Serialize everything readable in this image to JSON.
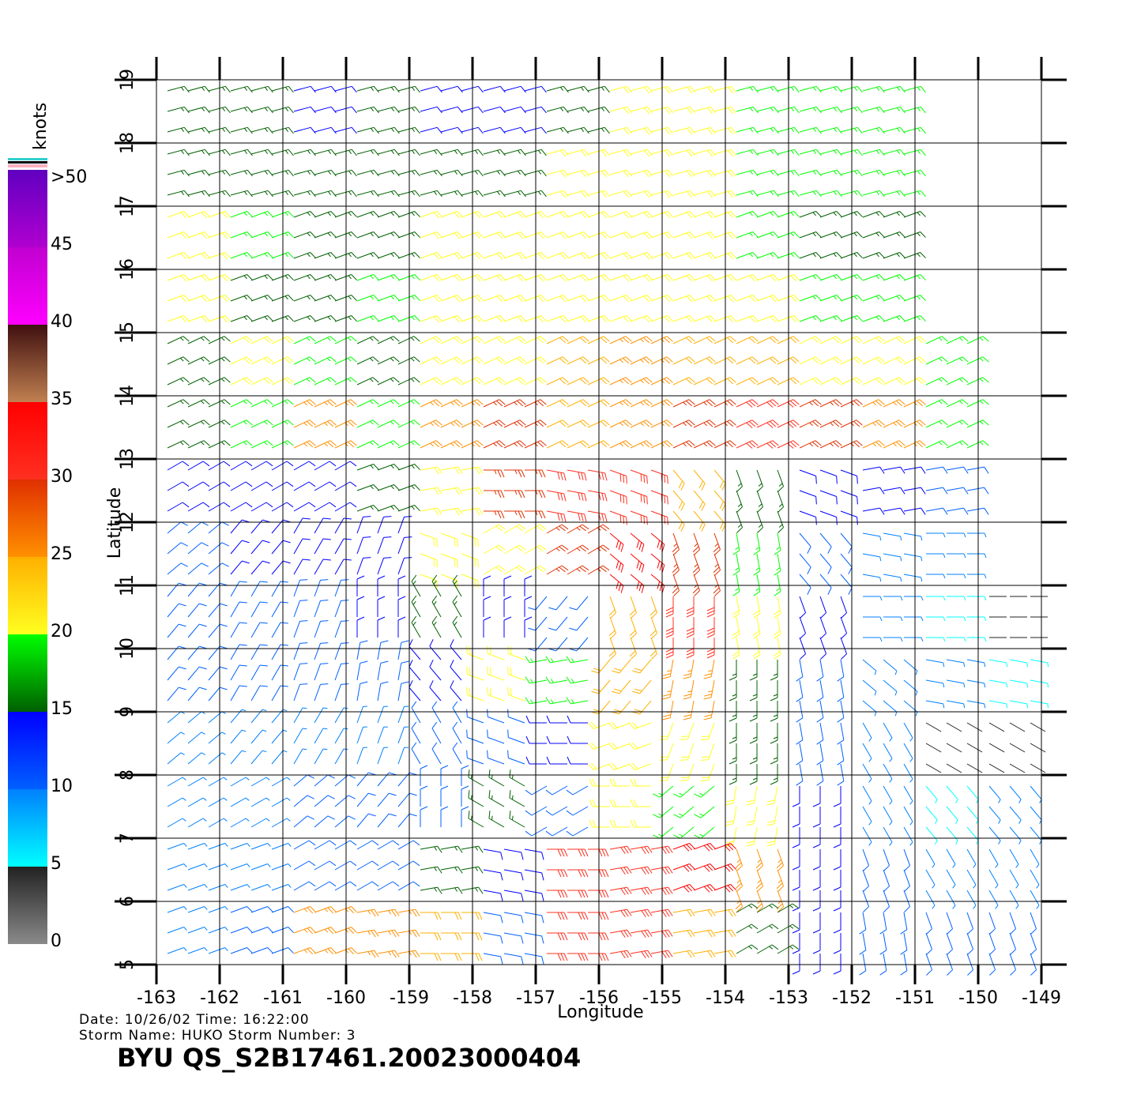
{
  "chart_data": {
    "type": "wind-barbs",
    "xlabel": "Longitude",
    "ylabel": "Latitude",
    "xlim": [
      -163,
      -149
    ],
    "ylim": [
      5,
      19
    ],
    "xticks": [
      -163,
      -162,
      -161,
      -160,
      -159,
      -158,
      -157,
      -156,
      -155,
      -154,
      -153,
      -152,
      -151,
      -150,
      -149
    ],
    "yticks": [
      5,
      6,
      7,
      8,
      9,
      10,
      11,
      12,
      13,
      14,
      15,
      16,
      17,
      18,
      19
    ],
    "grid": true,
    "info": [
      "Date: 10/26/02   Time: 16:22:00",
      "Storm Name: HUKO   Storm Number: 3"
    ],
    "footer": "BYU QS_S2B17461.20023000404",
    "legend": {
      "title": "knots",
      "ticks": [
        0,
        5,
        10,
        15,
        20,
        25,
        30,
        35,
        40,
        45,
        {
          "value": 50,
          "label": ">50"
        }
      ],
      "colors": [
        [
          "#8a8a8a",
          "#222222"
        ],
        [
          "#00ffff",
          "#0080ff"
        ],
        [
          "#0060ff",
          "#0000ff"
        ],
        [
          "#006000",
          "#00ff00"
        ],
        [
          "#ffff20",
          "#ffb000"
        ],
        [
          "#ff9000",
          "#e03000"
        ],
        [
          "#ff3020",
          "#ff0000"
        ],
        [
          "#c08050",
          "#401010"
        ],
        [
          "#ff00ff",
          "#c000d0"
        ],
        [
          "#b000d0",
          "#6000c0"
        ]
      ]
    },
    "wind": {
      "lons": [
        -162.5,
        -161.5,
        -160.5,
        -159.5,
        -158.5,
        -157.5,
        -156.5,
        -155.5,
        -154.5,
        -153.5,
        -152.5,
        -151.5,
        -150.5,
        -149.5
      ],
      "lats": [
        18.5,
        17.5,
        16.5,
        15.5,
        14.5,
        13.5,
        12.5,
        11.5,
        10.5,
        9.5,
        8.5,
        7.5,
        6.5,
        5.5
      ],
      "speed": [
        [
          17,
          17,
          14,
          16,
          14,
          13,
          17,
          21,
          21,
          18,
          18,
          18,
          null,
          null
        ],
        [
          17,
          17,
          16,
          17,
          16,
          17,
          21,
          22,
          21,
          18,
          18,
          18,
          null,
          null
        ],
        [
          21,
          18,
          17,
          17,
          21,
          21,
          22,
          21,
          21,
          18,
          17,
          17,
          null,
          null
        ],
        [
          21,
          17,
          17,
          18,
          22,
          22,
          22,
          21,
          21,
          21,
          18,
          18,
          null,
          null
        ],
        [
          17,
          21,
          18,
          17,
          21,
          22,
          24,
          26,
          24,
          24,
          22,
          21,
          18,
          null
        ],
        [
          17,
          18,
          26,
          18,
          27,
          28,
          23,
          26,
          28,
          30,
          28,
          27,
          18,
          null
        ],
        [
          13,
          14,
          14,
          17,
          22,
          28,
          31,
          32,
          23,
          17,
          13,
          13,
          12,
          null
        ],
        [
          12,
          13,
          13,
          14,
          21,
          22,
          28,
          33,
          28,
          18,
          12,
          8,
          8,
          null
        ],
        [
          12,
          12,
          12,
          13,
          17,
          13,
          12,
          24,
          32,
          22,
          13,
          8,
          7,
          4
        ],
        [
          11,
          12,
          11,
          12,
          14,
          21,
          18,
          23,
          27,
          17,
          12,
          9,
          8,
          7
        ],
        [
          9,
          9,
          8,
          9,
          11,
          12,
          13,
          22,
          21,
          17,
          12,
          8,
          4,
          4
        ],
        [
          8,
          8,
          11,
          11,
          12,
          16,
          12,
          22,
          18,
          21,
          13,
          8,
          7,
          8
        ],
        [
          8,
          9,
          11,
          12,
          17,
          13,
          30,
          31,
          33,
          26,
          13,
          12,
          9,
          9
        ],
        [
          8,
          11,
          26,
          27,
          23,
          12,
          31,
          32,
          23,
          17,
          13,
          12,
          11,
          12
        ]
      ],
      "direction": [
        [
          75,
          75,
          75,
          75,
          75,
          75,
          75,
          75,
          75,
          75,
          75,
          75,
          null,
          null
        ],
        [
          75,
          75,
          75,
          75,
          75,
          75,
          75,
          75,
          75,
          75,
          75,
          75,
          null,
          null
        ],
        [
          70,
          70,
          70,
          70,
          70,
          70,
          70,
          70,
          70,
          70,
          70,
          70,
          null,
          null
        ],
        [
          70,
          70,
          70,
          70,
          70,
          70,
          70,
          70,
          70,
          70,
          70,
          70,
          null,
          null
        ],
        [
          65,
          65,
          65,
          65,
          65,
          65,
          65,
          65,
          65,
          65,
          65,
          65,
          65,
          null
        ],
        [
          65,
          65,
          65,
          65,
          65,
          65,
          65,
          65,
          65,
          65,
          65,
          65,
          65,
          null
        ],
        [
          60,
          60,
          60,
          70,
          80,
          90,
          100,
          110,
          140,
          160,
          110,
          80,
          80,
          null
        ],
        [
          50,
          40,
          30,
          20,
          110,
          60,
          60,
          130,
          160,
          170,
          140,
          100,
          90,
          null
        ],
        [
          40,
          30,
          20,
          0,
          330,
          0,
          220,
          160,
          180,
          170,
          160,
          90,
          90,
          90
        ],
        [
          40,
          30,
          20,
          10,
          320,
          290,
          260,
          220,
          190,
          180,
          170,
          130,
          100,
          100
        ],
        [
          50,
          40,
          30,
          20,
          330,
          290,
          270,
          250,
          200,
          180,
          170,
          150,
          120,
          120
        ],
        [
          60,
          60,
          50,
          40,
          0,
          300,
          240,
          270,
          230,
          190,
          180,
          150,
          140,
          140
        ],
        [
          70,
          70,
          60,
          60,
          80,
          100,
          90,
          80,
          70,
          160,
          180,
          160,
          150,
          150
        ],
        [
          70,
          70,
          70,
          80,
          90,
          100,
          90,
          80,
          80,
          60,
          180,
          170,
          160,
          160
        ]
      ]
    }
  }
}
